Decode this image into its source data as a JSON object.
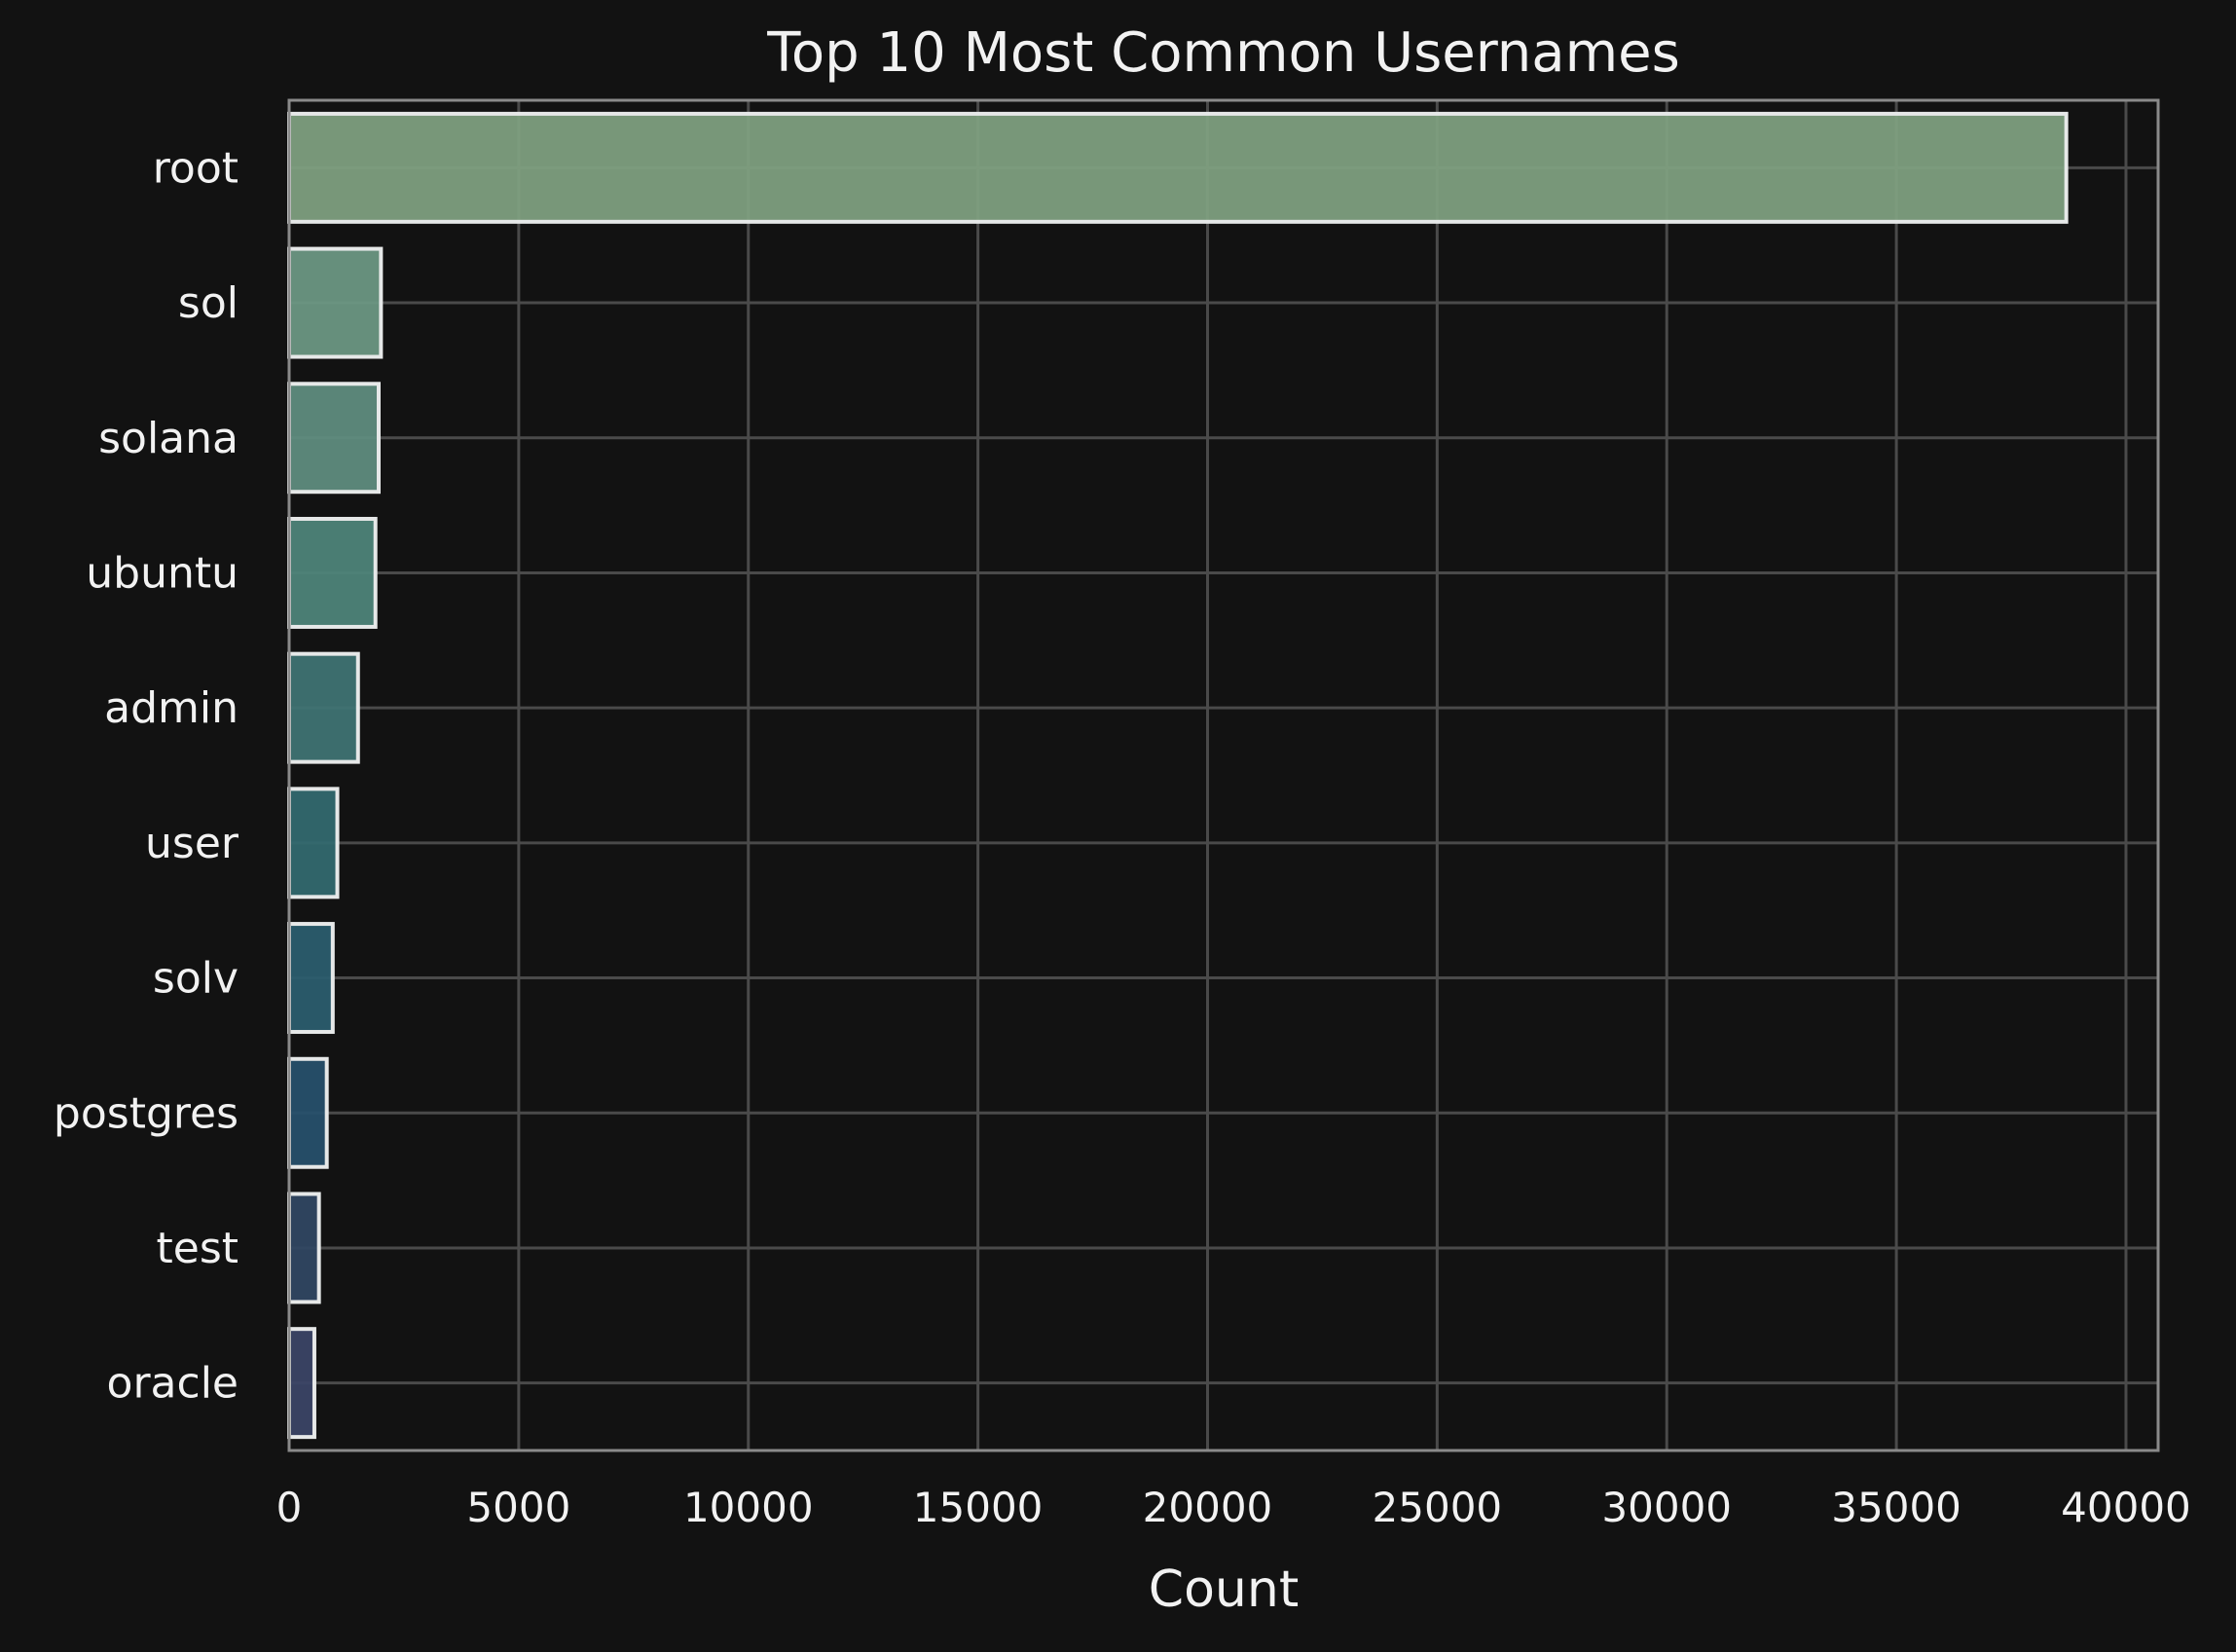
{
  "chart_data": {
    "type": "bar",
    "orientation": "horizontal",
    "title": "Top 10 Most Common Usernames",
    "xlabel": "Count",
    "ylabel": "",
    "xlim": [
      0,
      40700
    ],
    "xticks": [
      0,
      5000,
      10000,
      15000,
      20000,
      25000,
      30000,
      35000,
      40000
    ],
    "grid": true,
    "categories": [
      "root",
      "sol",
      "solana",
      "ubuntu",
      "admin",
      "user",
      "solv",
      "postgres",
      "test",
      "oracle"
    ],
    "values": [
      38700,
      2000,
      1950,
      1880,
      1500,
      1050,
      950,
      820,
      650,
      550
    ],
    "colors": [
      "#7e9f80",
      "#6c9783",
      "#5f8c7e",
      "#4e8479",
      "#3f7373",
      "#33696f",
      "#2b5d6e",
      "#27506b",
      "#304762",
      "#3b4566"
    ],
    "edge_color": "#e6e8e8",
    "background_color": "#121212",
    "grid_color": "#4a4a4a",
    "spine_color": "#8a8a8a",
    "text_color": "#f2f2f2"
  }
}
